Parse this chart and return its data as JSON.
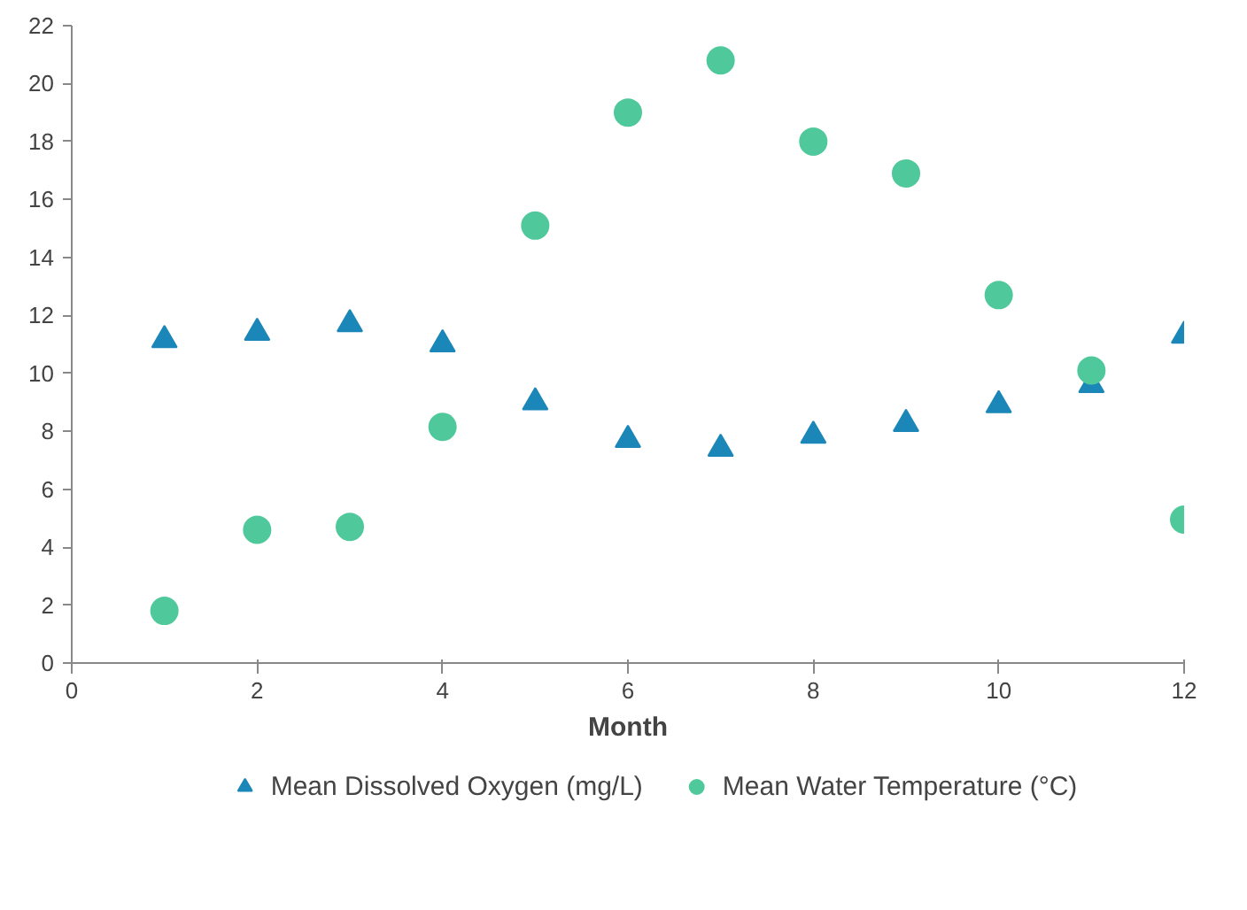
{
  "chart_data": {
    "type": "scatter",
    "xlabel": "Month",
    "x": [
      1,
      2,
      3,
      4,
      5,
      6,
      7,
      8,
      9,
      10,
      11,
      12
    ],
    "xlim": [
      0,
      12
    ],
    "xticks": [
      0,
      2,
      4,
      6,
      8,
      10,
      12
    ],
    "ylim": [
      0,
      22
    ],
    "yticks": [
      0,
      2,
      4,
      6,
      8,
      10,
      12,
      14,
      16,
      18,
      20,
      22
    ],
    "grid": false,
    "legend": "bottom",
    "series": [
      {
        "name": "Mean Dissolved Oxygen (mg/L)",
        "color": "#1b87b9",
        "marker": "triangle",
        "values": [
          11.15,
          11.4,
          11.7,
          11.0,
          9.0,
          7.7,
          7.4,
          7.85,
          8.25,
          8.9,
          9.6,
          11.3
        ]
      },
      {
        "name": "Mean Water Temperature (°C)",
        "color": "#4fc99b",
        "marker": "circle",
        "values": [
          1.8,
          4.6,
          4.7,
          8.15,
          15.1,
          19.0,
          20.8,
          18.0,
          16.9,
          12.7,
          10.1,
          4.95
        ]
      }
    ]
  }
}
